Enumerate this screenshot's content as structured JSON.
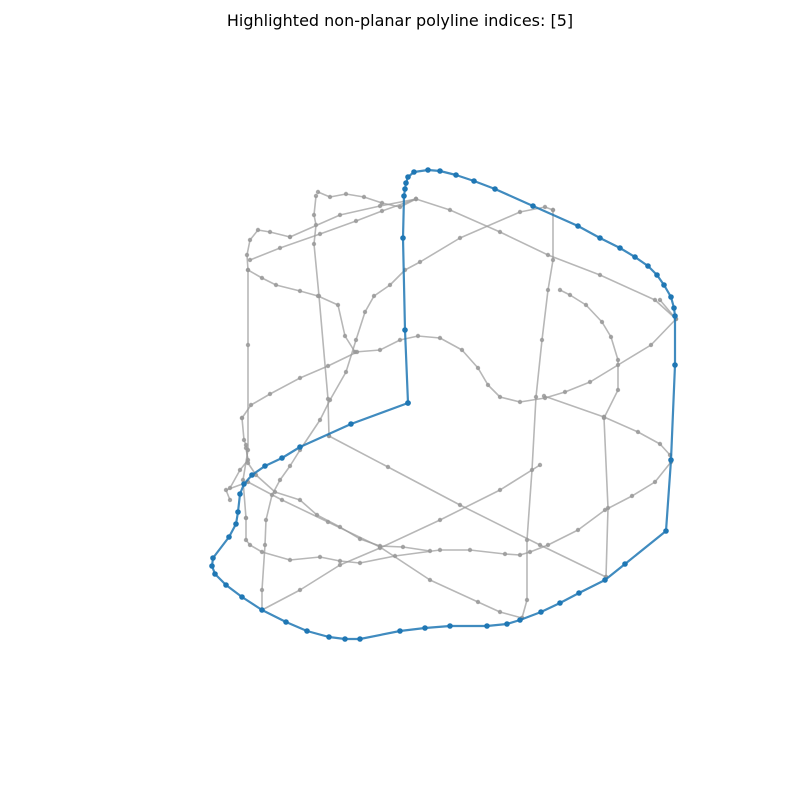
{
  "title": "Highlighted non-planar polyline indices: [5]",
  "colors": {
    "background": "#ffffff",
    "gray_polyline": "#999999",
    "highlight_polyline": "#1f77b4",
    "text": "#000000"
  },
  "chart_data": {
    "type": "3d-polylines",
    "title": "Highlighted non-planar polyline indices: [5]",
    "highlighted_indices": [
      5
    ],
    "axes_visible": false,
    "grid": false
  }
}
